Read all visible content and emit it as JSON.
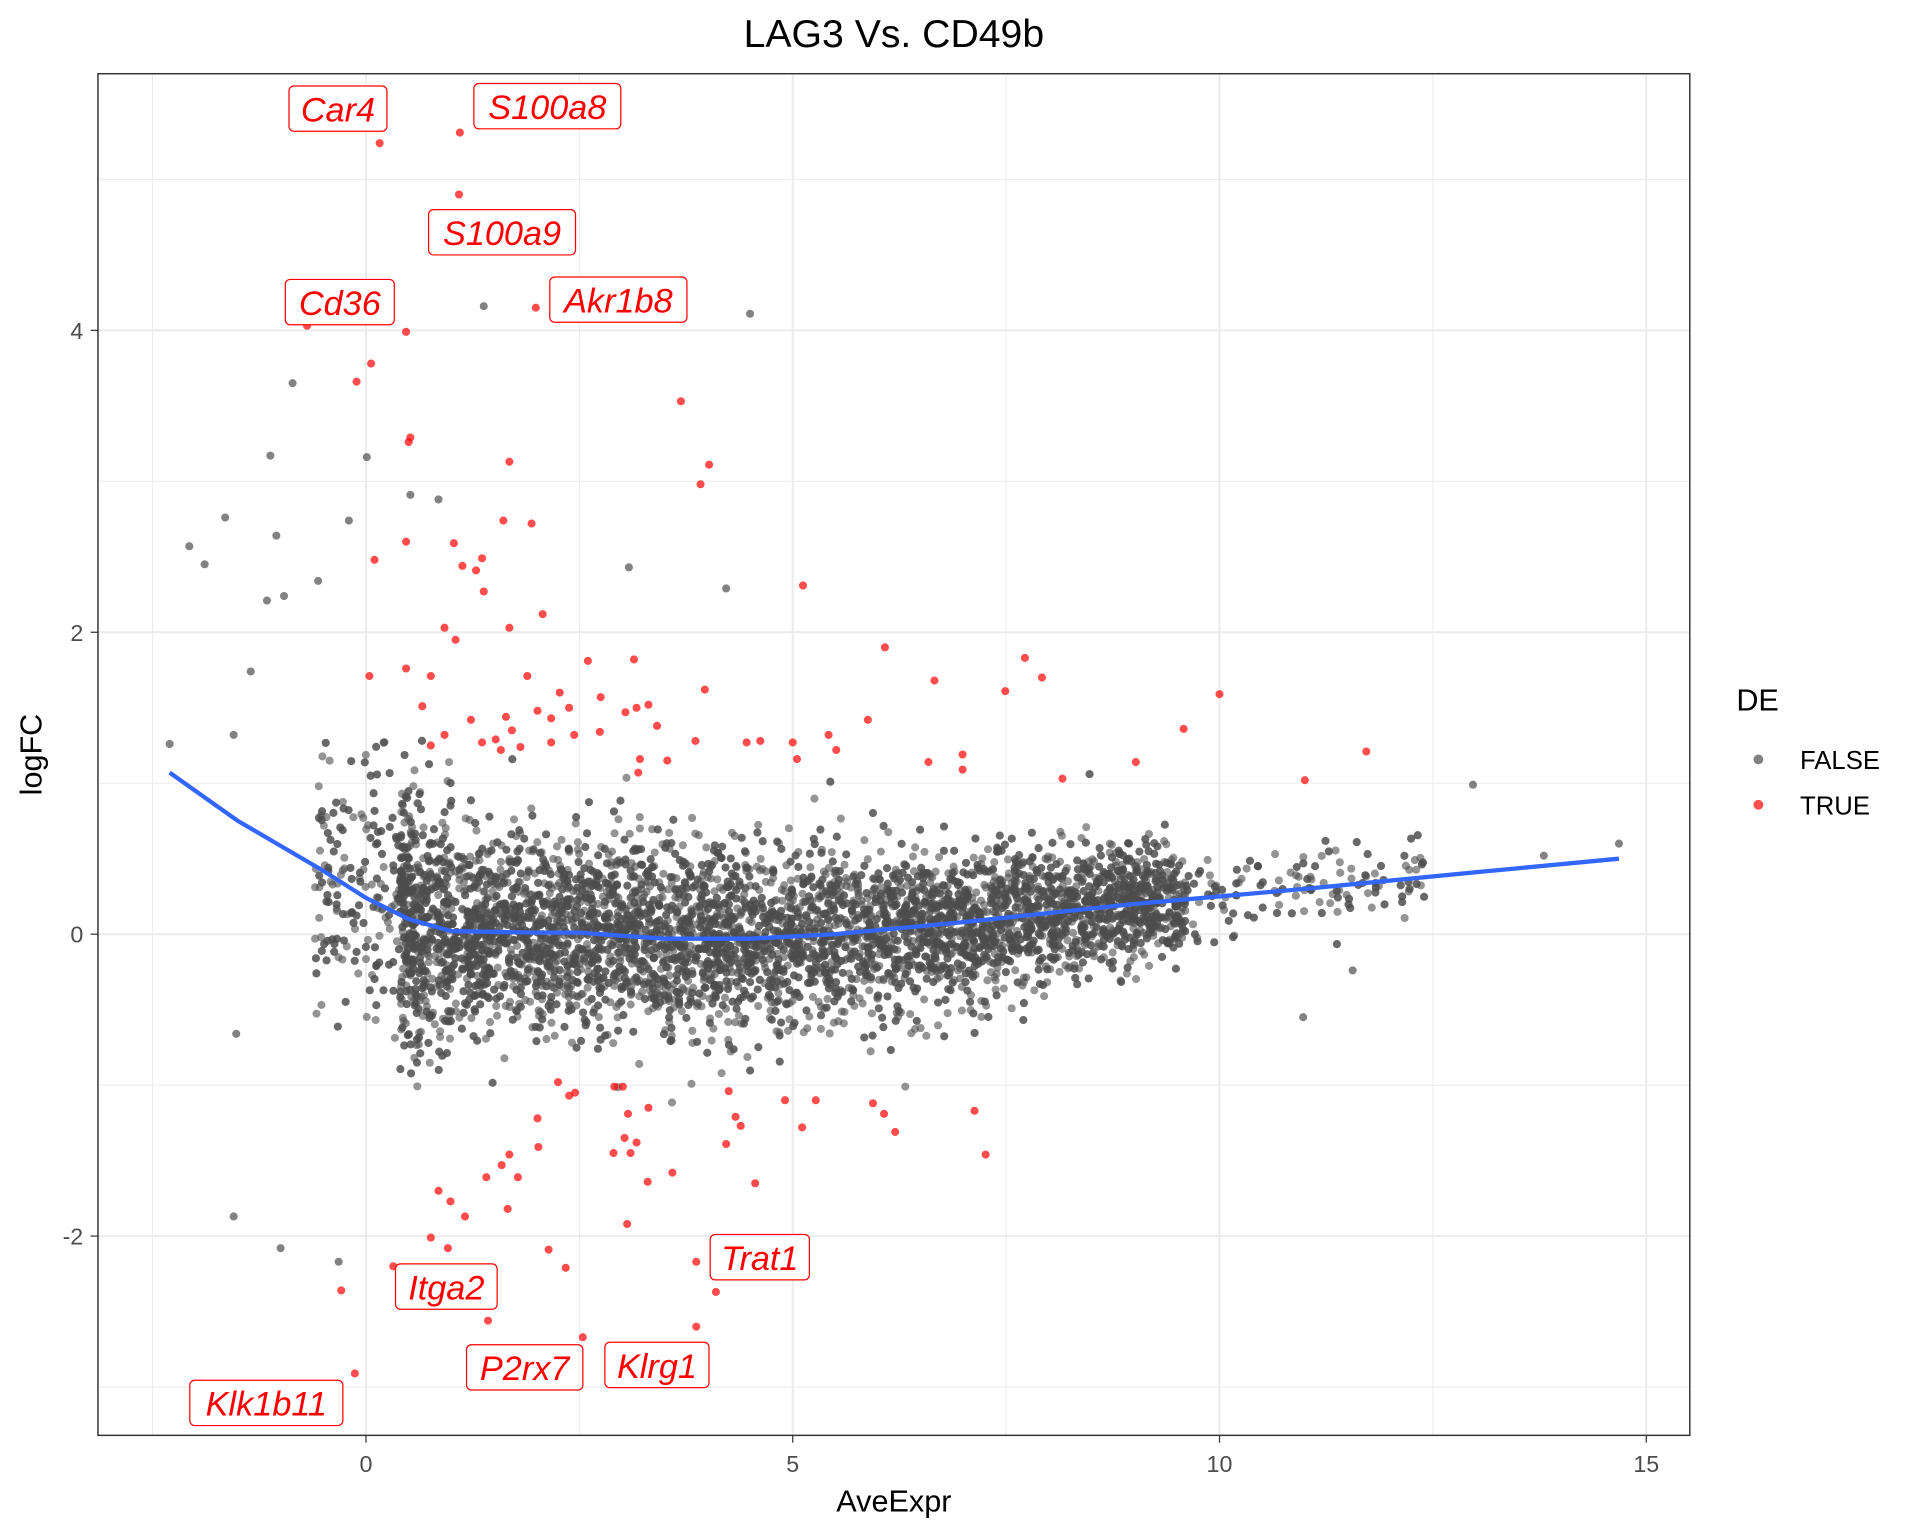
{
  "chart_data": {
    "type": "scatter",
    "title": "LAG3 Vs. CD49b",
    "xlabel": "AveExpr",
    "ylabel": "logFC",
    "xlim": [
      -3.14,
      15.51
    ],
    "ylim": [
      -3.32,
      5.7
    ],
    "x_ticks": [
      "0",
      "5",
      "10",
      "15"
    ],
    "y_ticks": [
      "-2",
      "0",
      "2",
      "4"
    ],
    "grid": true,
    "legend": {
      "title": "DE",
      "position": "right",
      "entries": [
        {
          "label": "FALSE",
          "color": "#4d4d4d"
        },
        {
          "label": "TRUE",
          "color": "#ff0000"
        }
      ]
    },
    "colors": {
      "false": "#4d4d4d",
      "true": "#ff0000",
      "trend": "#3366ff"
    },
    "labeled_genes": [
      {
        "gene": "Car4",
        "x": 0.16,
        "y": 5.24
      },
      {
        "gene": "S100a8",
        "x": 1.1,
        "y": 5.31
      },
      {
        "gene": "S100a9",
        "x": 1.09,
        "y": 4.9
      },
      {
        "gene": "Cd36",
        "x": -0.69,
        "y": 4.03
      },
      {
        "gene": "Akr1b8",
        "x": 1.99,
        "y": 4.15
      },
      {
        "gene": "Trat1",
        "x": 3.87,
        "y": -2.17
      },
      {
        "gene": "Itga2",
        "x": 0.32,
        "y": -2.2
      },
      {
        "gene": "P2rx7",
        "x": 1.43,
        "y": -2.56
      },
      {
        "gene": "Klrg1",
        "x": 3.87,
        "y": -2.6
      },
      {
        "gene": "Klk1b11",
        "x": -0.13,
        "y": -2.91
      }
    ],
    "de_true_points": [
      [
        -0.11,
        3.66
      ],
      [
        0.06,
        3.78
      ],
      [
        0.47,
        3.99
      ],
      [
        0.52,
        3.29
      ],
      [
        0.5,
        3.26
      ],
      [
        1.68,
        3.13
      ],
      [
        3.69,
        3.53
      ],
      [
        4.02,
        3.11
      ],
      [
        3.92,
        2.98
      ],
      [
        0.47,
        2.6
      ],
      [
        0.1,
        2.48
      ],
      [
        1.03,
        2.59
      ],
      [
        1.13,
        2.44
      ],
      [
        1.36,
        2.49
      ],
      [
        1.29,
        2.41
      ],
      [
        1.38,
        2.27
      ],
      [
        1.61,
        2.74
      ],
      [
        1.94,
        2.72
      ],
      [
        2.07,
        2.12
      ],
      [
        1.68,
        2.03
      ],
      [
        0.92,
        2.03
      ],
      [
        1.05,
        1.95
      ],
      [
        0.04,
        1.71
      ],
      [
        0.47,
        1.76
      ],
      [
        5.12,
        2.31
      ],
      [
        6.08,
        1.9
      ],
      [
        6.66,
        1.68
      ],
      [
        7.72,
        1.83
      ],
      [
        7.92,
        1.7
      ],
      [
        7.49,
        1.61
      ],
      [
        10.0,
        1.59
      ],
      [
        9.58,
        1.36
      ],
      [
        11.72,
        1.21
      ],
      [
        11.0,
        1.02
      ],
      [
        9.02,
        1.14
      ],
      [
        8.16,
        1.03
      ],
      [
        3.14,
        1.82
      ],
      [
        3.97,
        1.62
      ],
      [
        1.89,
        1.71
      ],
      [
        2.6,
        1.81
      ],
      [
        2.27,
        1.6
      ],
      [
        2.38,
        1.5
      ],
      [
        2.75,
        1.57
      ],
      [
        3.17,
        1.5
      ],
      [
        3.31,
        1.52
      ],
      [
        3.04,
        1.47
      ],
      [
        3.41,
        1.38
      ],
      [
        2.74,
        1.34
      ],
      [
        3.86,
        1.28
      ],
      [
        3.53,
        1.15
      ],
      [
        4.46,
        1.27
      ],
      [
        4.62,
        1.28
      ],
      [
        5.0,
        1.27
      ],
      [
        5.05,
        1.16
      ],
      [
        5.42,
        1.32
      ],
      [
        5.51,
        1.22
      ],
      [
        5.88,
        1.42
      ],
      [
        6.59,
        1.14
      ],
      [
        6.99,
        1.19
      ],
      [
        6.99,
        1.09
      ],
      [
        3.21,
        1.16
      ],
      [
        3.19,
        1.07
      ],
      [
        2.44,
        1.32
      ],
      [
        2.17,
        1.43
      ],
      [
        2.01,
        1.48
      ],
      [
        1.64,
        1.44
      ],
      [
        1.52,
        1.29
      ],
      [
        1.81,
        1.24
      ],
      [
        1.71,
        1.35
      ],
      [
        2.17,
        1.27
      ],
      [
        0.76,
        1.71
      ],
      [
        0.66,
        1.51
      ],
      [
        0.76,
        1.25
      ],
      [
        1.23,
        1.42
      ],
      [
        0.92,
        1.32
      ],
      [
        1.58,
        1.22
      ],
      [
        1.36,
        1.27
      ],
      [
        2.25,
        -0.98
      ],
      [
        2.38,
        -1.07
      ],
      [
        2.45,
        -1.05
      ],
      [
        2.91,
        -1.01
      ],
      [
        3.01,
        -1.01
      ],
      [
        3.07,
        -1.19
      ],
      [
        3.17,
        -1.38
      ],
      [
        3.03,
        -1.35
      ],
      [
        2.9,
        -1.45
      ],
      [
        3.1,
        -1.45
      ],
      [
        3.31,
        -1.15
      ],
      [
        4.25,
        -1.04
      ],
      [
        4.33,
        -1.21
      ],
      [
        4.39,
        -1.27
      ],
      [
        4.91,
        -1.1
      ],
      [
        5.27,
        -1.1
      ],
      [
        5.11,
        -1.28
      ],
      [
        5.94,
        -1.12
      ],
      [
        6.07,
        -1.19
      ],
      [
        6.2,
        -1.31
      ],
      [
        7.13,
        -1.17
      ],
      [
        7.26,
        -1.46
      ],
      [
        4.22,
        -1.39
      ],
      [
        4.56,
        -1.65
      ],
      [
        3.59,
        -1.58
      ],
      [
        3.3,
        -1.64
      ],
      [
        2.01,
        -1.22
      ],
      [
        2.02,
        -1.41
      ],
      [
        1.68,
        -1.46
      ],
      [
        1.59,
        -1.53
      ],
      [
        1.41,
        -1.61
      ],
      [
        1.78,
        -1.61
      ],
      [
        1.66,
        -1.82
      ],
      [
        0.85,
        -1.7
      ],
      [
        0.99,
        -1.77
      ],
      [
        1.16,
        -1.87
      ],
      [
        0.76,
        -2.01
      ],
      [
        0.96,
        -2.08
      ],
      [
        2.14,
        -2.09
      ],
      [
        2.34,
        -2.21
      ],
      [
        4.1,
        -2.37
      ],
      [
        -0.29,
        -2.36
      ],
      [
        3.06,
        -1.92
      ],
      [
        2.54,
        -2.67
      ]
    ],
    "de_false_outliers": [
      [
        4.5,
        4.11
      ],
      [
        1.38,
        4.16
      ],
      [
        -0.86,
        3.65
      ],
      [
        -1.12,
        3.17
      ],
      [
        0.01,
        3.16
      ],
      [
        -2.3,
        1.26
      ],
      [
        -2.07,
        2.57
      ],
      [
        -1.89,
        2.45
      ],
      [
        -1.65,
        2.76
      ],
      [
        -1.05,
        2.64
      ],
      [
        -1.16,
        2.21
      ],
      [
        -0.96,
        2.24
      ],
      [
        -0.56,
        2.34
      ],
      [
        -0.2,
        2.74
      ],
      [
        0.52,
        2.91
      ],
      [
        0.85,
        2.88
      ],
      [
        3.08,
        2.43
      ],
      [
        4.22,
        2.29
      ],
      [
        -1.35,
        1.74
      ],
      [
        -1.55,
        1.32
      ],
      [
        12.97,
        0.99
      ],
      [
        14.68,
        0.6
      ],
      [
        13.8,
        0.52
      ],
      [
        -1.52,
        -0.66
      ],
      [
        -1.55,
        -1.87
      ],
      [
        -1.0,
        -2.08
      ],
      [
        -0.32,
        -2.17
      ],
      [
        10.98,
        -0.55
      ],
      [
        11.56,
        -0.24
      ]
    ],
    "trend_line": [
      [
        -2.3,
        1.07
      ],
      [
        -1.5,
        0.75
      ],
      [
        -0.5,
        0.42
      ],
      [
        0,
        0.24
      ],
      [
        0.5,
        0.1
      ],
      [
        1,
        0.02
      ],
      [
        2,
        0.01
      ],
      [
        2.5,
        0.01
      ],
      [
        3.5,
        -0.03
      ],
      [
        4.5,
        -0.03
      ],
      [
        5.5,
        0.0
      ],
      [
        7,
        0.08
      ],
      [
        9,
        0.2
      ],
      [
        11,
        0.3
      ],
      [
        13,
        0.41
      ],
      [
        14.68,
        0.5
      ]
    ]
  }
}
